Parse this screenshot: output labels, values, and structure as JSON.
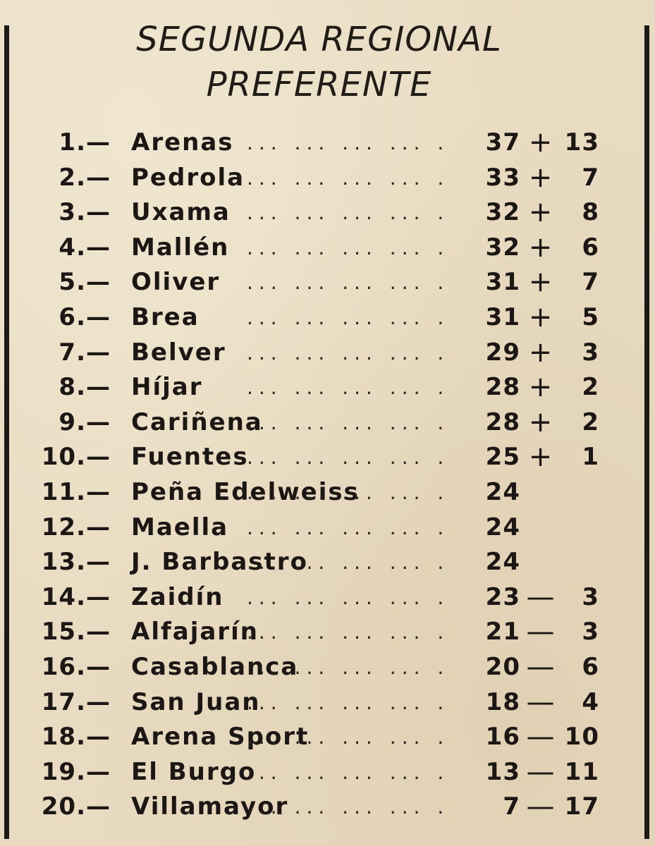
{
  "title": {
    "line1": "SEGUNDA REGIONAL",
    "line2": "PREFERENTE"
  },
  "standings": [
    {
      "position": "1.",
      "team": "Arenas",
      "points": "37",
      "sign": "+",
      "diff": "13"
    },
    {
      "position": "2.",
      "team": "Pedrola",
      "points": "33",
      "sign": "+",
      "diff": "7"
    },
    {
      "position": "3.",
      "team": "Uxama",
      "points": "32",
      "sign": "+",
      "diff": "8"
    },
    {
      "position": "4.",
      "team": "Mallén",
      "points": "32",
      "sign": "+",
      "diff": "6"
    },
    {
      "position": "5.",
      "team": "Oliver",
      "points": "31",
      "sign": "+",
      "diff": "7"
    },
    {
      "position": "6.",
      "team": "Brea",
      "points": "31",
      "sign": "+",
      "diff": "5"
    },
    {
      "position": "7.",
      "team": "Belver",
      "points": "29",
      "sign": "+",
      "diff": "3"
    },
    {
      "position": "8.",
      "team": "Híjar",
      "points": "28",
      "sign": "+",
      "diff": "2"
    },
    {
      "position": "9.",
      "team": "Cariñena",
      "points": "28",
      "sign": "+",
      "diff": "2"
    },
    {
      "position": "10.",
      "team": "Fuentes",
      "points": "25",
      "sign": "+",
      "diff": "1"
    },
    {
      "position": "11.",
      "team": "Peña Edelweiss",
      "points": "24",
      "sign": "",
      "diff": ""
    },
    {
      "position": "12.",
      "team": "Maella",
      "points": "24",
      "sign": "",
      "diff": ""
    },
    {
      "position": "13.",
      "team": "J. Barbastro",
      "points": "24",
      "sign": "",
      "diff": ""
    },
    {
      "position": "14.",
      "team": "Zaidín",
      "points": "23",
      "sign": "—",
      "diff": "3"
    },
    {
      "position": "15.",
      "team": "Alfajarín",
      "points": "21",
      "sign": "—",
      "diff": "3"
    },
    {
      "position": "16.",
      "team": "Casablanca",
      "points": "20",
      "sign": "—",
      "diff": "6"
    },
    {
      "position": "17.",
      "team": "San Juan",
      "points": "18",
      "sign": "—",
      "diff": "4"
    },
    {
      "position": "18.",
      "team": "Arena Sport",
      "points": "16",
      "sign": "—",
      "diff": "10"
    },
    {
      "position": "19.",
      "team": "El Burgo",
      "points": "13",
      "sign": "—",
      "diff": "11"
    },
    {
      "position": "20.",
      "team": "Villamayor",
      "points": "7",
      "sign": "—",
      "diff": "17"
    }
  ],
  "separators": {
    "dash": "—",
    "leader": "... ... ... ... ..."
  }
}
